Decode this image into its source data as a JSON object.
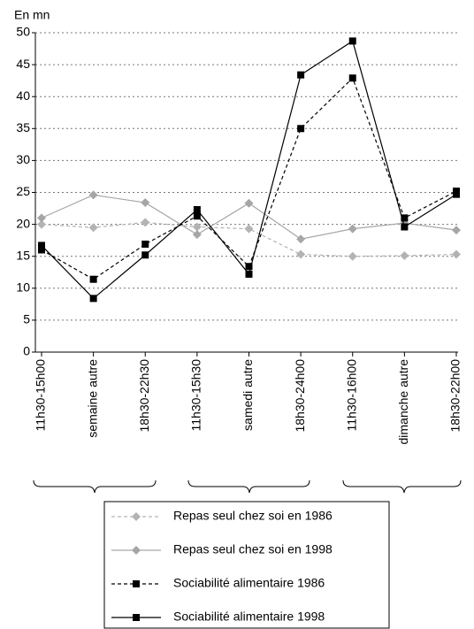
{
  "chart_data": {
    "type": "line",
    "y_label": "En mn",
    "categories": [
      "11h30-15h00",
      "semaine autre",
      "18h30-22h30",
      "11h30-15h30",
      "samedi autre",
      "18h30-24h00",
      "11h30-16h00",
      "dimanche autre",
      "18h30-22h00"
    ],
    "series": [
      {
        "name": "Repas seul chez soi en 1986",
        "color": "#b3b3b3",
        "dashed": true,
        "marker": "diamond",
        "values": [
          20,
          19.5,
          20.3,
          19.6,
          19.3,
          15.3,
          15,
          15.1,
          15.3
        ]
      },
      {
        "name": "Repas seul chez soi en 1998",
        "color": "#a6a6a6",
        "dashed": false,
        "marker": "diamond",
        "values": [
          21,
          24.6,
          23.4,
          18.4,
          23.3,
          17.7,
          19.3,
          20.2,
          19.1
        ]
      },
      {
        "name": "Sociabilité alimentaire 1986",
        "color": "#000000",
        "dashed": true,
        "marker": "square",
        "values": [
          16,
          11.4,
          16.9,
          21.3,
          13.4,
          35,
          42.9,
          21,
          25.2
        ]
      },
      {
        "name": "Sociabilité alimentaire 1998",
        "color": "#000000",
        "dashed": false,
        "marker": "square",
        "values": [
          16.7,
          8.4,
          15.2,
          22.3,
          12.2,
          43.4,
          48.7,
          19.6,
          24.7
        ]
      }
    ],
    "ylim": [
      0,
      50
    ],
    "yticks": [
      0,
      5,
      10,
      15,
      20,
      25,
      30,
      35,
      40,
      45,
      50
    ],
    "grid": true
  }
}
